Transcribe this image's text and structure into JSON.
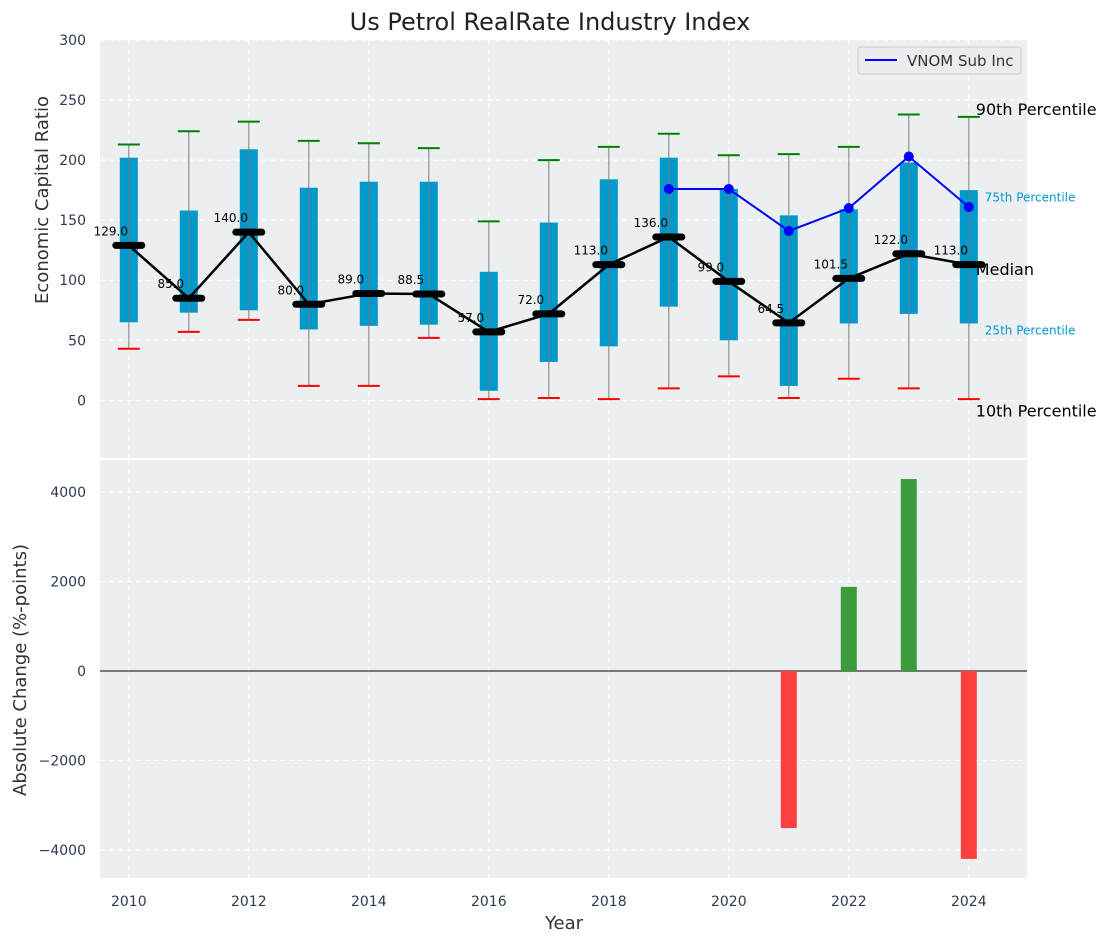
{
  "chart_data": [
    {
      "type": "box",
      "title": "Us Petrol RealRate Industry Index",
      "xlabel": "",
      "ylabel": "Economic Capital Ratio",
      "xlim": [
        2009.52,
        2024.97
      ],
      "ylim": [
        -48,
        300
      ],
      "yticks": [
        0,
        50,
        100,
        150,
        200,
        250,
        300
      ],
      "grid": true,
      "legend": {
        "placement": "top-right",
        "entries": [
          "VNOM Sub Inc"
        ]
      },
      "years": [
        2010,
        2011,
        2012,
        2013,
        2014,
        2015,
        2016,
        2017,
        2018,
        2019,
        2020,
        2021,
        2022,
        2023,
        2024
      ],
      "p90": [
        213,
        224,
        232,
        216,
        214,
        210,
        149,
        200,
        211,
        222,
        204,
        205,
        211,
        238,
        236
      ],
      "p75": [
        202,
        158,
        209,
        177,
        182,
        182,
        107,
        148,
        184,
        202,
        176,
        154,
        159,
        198,
        175
      ],
      "median": [
        129.0,
        85.0,
        140.0,
        80.0,
        89.0,
        88.5,
        57.0,
        72.0,
        113.0,
        136.0,
        99.0,
        64.5,
        101.5,
        122.0,
        113.0
      ],
      "median_labels": [
        "129.0",
        "85.0",
        "140.0",
        "80.0",
        "89.0",
        "88.5",
        "57.0",
        "72.0",
        "113.0",
        "136.0",
        "99.0",
        "64.5",
        "101.5",
        "122.0",
        "113.0"
      ],
      "p25": [
        65,
        73,
        75,
        59,
        62,
        63,
        8,
        32,
        45,
        78,
        50,
        12,
        64,
        72,
        64
      ],
      "p10": [
        43,
        57,
        67,
        12,
        12,
        52,
        1,
        2,
        1,
        10,
        20,
        2,
        18,
        10,
        1
      ],
      "series": [
        {
          "name": "VNOM Sub Inc",
          "x": [
            2019,
            2020,
            2021,
            2022,
            2023,
            2024
          ],
          "values": [
            176,
            176,
            141,
            160,
            203,
            161
          ]
        }
      ],
      "annotations": {
        "p90": "90th Percentile",
        "p75": "75th Percentile",
        "median": "Median",
        "p25": "25th Percentile",
        "p10": "10th Percentile"
      },
      "colors": {
        "box": "#0099cc",
        "cap_top": "#008000",
        "cap_bottom": "#ff0000",
        "median": "#000000",
        "series": "#0000ff",
        "bg": "#eceff0"
      }
    },
    {
      "type": "bar",
      "xlabel": "Year",
      "ylabel": "Absolute Change (%-points)",
      "xlim": [
        2009.52,
        2024.97
      ],
      "ylim": [
        -4626,
        4715
      ],
      "yticks": [
        -4000,
        -2000,
        0,
        2000,
        4000
      ],
      "ytick_labels": [
        "−4000",
        "−2000",
        "0",
        "2000",
        "4000"
      ],
      "xticks": [
        2010,
        2012,
        2014,
        2016,
        2018,
        2020,
        2022,
        2024
      ],
      "grid": true,
      "categories": [
        2021,
        2022,
        2023,
        2024
      ],
      "values": [
        -3510,
        1880,
        4290,
        -4200
      ],
      "colors": {
        "positive": "#3c9c3c",
        "negative": "#ff4040"
      }
    }
  ]
}
